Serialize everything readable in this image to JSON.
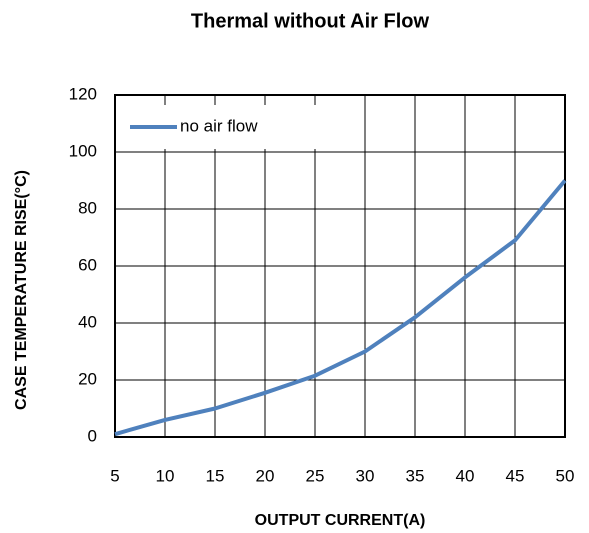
{
  "chart_data": {
    "type": "line",
    "title": "Thermal without Air Flow",
    "x_label": "OUTPUT CURRENT(A)",
    "y_label": "CASE TEMPERATURE RISE(°C)",
    "x": [
      5,
      10,
      15,
      20,
      25,
      30,
      35,
      40,
      45,
      50
    ],
    "series": [
      {
        "name": "no air flow",
        "color": "#4f81bd",
        "values": [
          1,
          6,
          10,
          15.5,
          21.5,
          30,
          42,
          56,
          69,
          90
        ]
      }
    ],
    "xlim": [
      5,
      50
    ],
    "xticks": [
      5,
      10,
      15,
      20,
      25,
      30,
      35,
      40,
      45,
      50
    ],
    "ylim": [
      0,
      120
    ],
    "yticks": [
      0,
      20,
      40,
      60,
      80,
      100,
      120
    ],
    "grid": true,
    "legend": "upper left"
  }
}
